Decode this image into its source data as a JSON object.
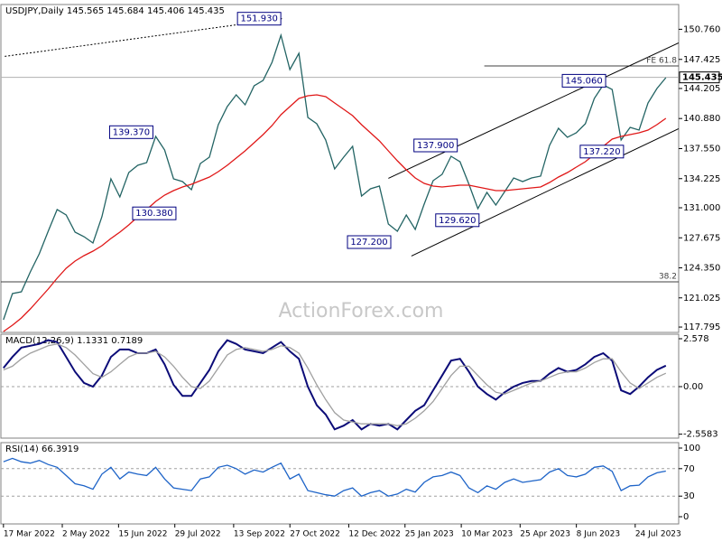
{
  "chart_data": [
    {
      "type": "line",
      "title": "USDJPY,Daily  145.565 145.684 145.406 145.435",
      "watermark": "ActionForex.com",
      "xlim": [
        "15 Mar 2022",
        "27 Aug 2023"
      ],
      "x": [
        "17 Mar 2022",
        "24 Mar 2022",
        "31 Mar 2022",
        "7 Apr 2022",
        "14 Apr 2022",
        "21 Apr 2022",
        "28 Apr 2022",
        "5 May 2022",
        "12 May 2022",
        "19 May 2022",
        "26 May 2022",
        "2 Jun 2022",
        "9 Jun 2022",
        "16 Jun 2022",
        "23 Jun 2022",
        "30 Jun 2022",
        "7 Jul 2022",
        "14 Jul 2022",
        "21 Jul 2022",
        "28 Jul 2022",
        "4 Aug 2022",
        "11 Aug 2022",
        "18 Aug 2022",
        "25 Aug 2022",
        "1 Sep 2022",
        "8 Sep 2022",
        "15 Sep 2022",
        "22 Sep 2022",
        "29 Sep 2022",
        "6 Oct 2022",
        "13 Oct 2022",
        "20 Oct 2022",
        "27 Oct 2022",
        "3 Nov 2022",
        "10 Nov 2022",
        "17 Nov 2022",
        "24 Nov 2022",
        "1 Dec 2022",
        "8 Dec 2022",
        "15 Dec 2022",
        "22 Dec 2022",
        "29 Dec 2022",
        "5 Jan 2023",
        "12 Jan 2023",
        "19 Jan 2023",
        "26 Jan 2023",
        "2 Feb 2023",
        "9 Feb 2023",
        "16 Feb 2023",
        "23 Feb 2023",
        "2 Mar 2023",
        "9 Mar 2023",
        "16 Mar 2023",
        "23 Mar 2023",
        "30 Mar 2023",
        "6 Apr 2023",
        "13 Apr 2023",
        "20 Apr 2023",
        "27 Apr 2023",
        "4 May 2023",
        "11 May 2023",
        "18 May 2023",
        "25 May 2023",
        "1 Jun 2023",
        "8 Jun 2023",
        "15 Jun 2023",
        "22 Jun 2023",
        "29 Jun 2023",
        "6 Jul 2023",
        "13 Jul 2023",
        "20 Jul 2023",
        "27 Jul 2023",
        "3 Aug 2023",
        "10 Aug 2023",
        "17 Aug 2023"
      ],
      "series": [
        {
          "color": "#236464",
          "values": [
            118.6,
            121.5,
            121.7,
            123.9,
            125.9,
            128.4,
            130.8,
            130.2,
            128.3,
            127.8,
            127.1,
            130.0,
            134.2,
            132.2,
            134.9,
            135.7,
            136.0,
            138.9,
            137.4,
            134.2,
            133.9,
            133.0,
            135.9,
            136.6,
            140.2,
            142.2,
            143.5,
            142.4,
            144.5,
            145.1,
            147.1,
            150.1,
            146.3,
            148.1,
            141.0,
            140.3,
            138.5,
            135.3,
            136.6,
            137.8,
            132.3,
            133.1,
            133.4,
            129.2,
            128.4,
            130.2,
            128.6,
            131.4,
            134.0,
            134.7,
            136.7,
            136.1,
            133.6,
            130.9,
            132.7,
            131.3,
            132.8,
            134.3,
            133.9,
            134.3,
            134.5,
            137.9,
            139.8,
            138.8,
            139.3,
            140.3,
            143.1,
            144.6,
            144.1,
            138.5,
            139.9,
            139.6,
            142.6,
            144.2,
            145.4
          ]
        },
        {
          "color": "#e01818",
          "values": [
            117.3,
            118.0,
            118.8,
            119.8,
            120.9,
            122.0,
            123.2,
            124.3,
            125.1,
            125.7,
            126.2,
            126.8,
            127.6,
            128.3,
            129.1,
            130.0,
            130.8,
            131.7,
            132.4,
            132.9,
            133.3,
            133.6,
            134.0,
            134.4,
            135.0,
            135.7,
            136.5,
            137.3,
            138.2,
            139.1,
            140.1,
            141.3,
            142.2,
            143.1,
            143.4,
            143.5,
            143.3,
            142.6,
            141.9,
            141.2,
            140.2,
            139.3,
            138.4,
            137.3,
            136.2,
            135.2,
            134.3,
            133.7,
            133.4,
            133.3,
            133.4,
            133.5,
            133.5,
            133.3,
            133.1,
            132.9,
            132.9,
            133.0,
            133.1,
            133.2,
            133.3,
            133.8,
            134.4,
            134.9,
            135.5,
            136.1,
            136.9,
            137.8,
            138.6,
            138.9,
            139.1,
            139.3,
            139.6,
            140.2,
            140.9
          ]
        }
      ],
      "ylim": [
        117.2,
        153.5
      ],
      "yticks": [
        117.795,
        121.025,
        {
          "value": 124.35,
          "label": "124.350"
        },
        127.675,
        {
          "value": 131,
          "label": "131.000"
        },
        134.225,
        {
          "value": 137.55,
          "label": "137.550"
        },
        {
          "value": 140.88,
          "label": "140.880"
        },
        144.205,
        147.425,
        {
          "value": 150.76,
          "label": "150.760"
        }
      ],
      "current_price": {
        "value": 145.435,
        "label": "145.435"
      },
      "hlines": [
        {
          "value": 146.7,
          "label": "FE 61.8",
          "x": "28 Mar 2023"
        },
        {
          "value": 122.8,
          "label": "38.2"
        }
      ],
      "annotations": [
        {
          "value": 151.93,
          "label": "151.930",
          "x": "16 Sep 2022"
        },
        {
          "value": 139.37,
          "label": "139.370",
          "x": "8 Jun 2022"
        },
        {
          "value": 130.38,
          "label": "130.380",
          "x": "26 Jun 2022"
        },
        {
          "value": 127.2,
          "label": "127.200",
          "x": "11 Dec 2022"
        },
        {
          "value": 137.9,
          "label": "137.900",
          "x": "1 Feb 2023"
        },
        {
          "value": 129.62,
          "label": "129.620",
          "x": "18 Feb 2023"
        },
        {
          "value": 145.06,
          "label": "145.060",
          "x": "28 May 2023"
        },
        {
          "value": 137.22,
          "label": "137.220",
          "x": "11 Jun 2023"
        }
      ],
      "trendlines": [
        {
          "x": [
            "18 Mar 2022",
            "22 Oct 2022"
          ],
          "y": [
            147.76,
            151.96
          ],
          "style": "dotted"
        },
        {
          "x": [
            "12 Jan 2023",
            "27 Aug 2023"
          ],
          "y": [
            134.26,
            149.26
          ],
          "style": "solid"
        },
        {
          "x": [
            "30 Jan 2023",
            "27 Aug 2023"
          ],
          "y": [
            125.66,
            139.76
          ],
          "style": "solid"
        }
      ]
    },
    {
      "type": "line",
      "title": "MACD(12,26,9) 1.1331 0.7189",
      "series": [
        {
          "color": "#0c0c78",
          "values": [
            1.0,
            1.6,
            2.1,
            2.2,
            2.3,
            2.5,
            2.4,
            1.6,
            0.8,
            0.2,
            0.0,
            0.6,
            1.6,
            2.0,
            2.0,
            1.8,
            1.8,
            2.0,
            1.2,
            0.1,
            -0.5,
            -0.5,
            0.2,
            0.9,
            1.9,
            2.5,
            2.3,
            2.0,
            1.9,
            1.8,
            2.1,
            2.4,
            1.9,
            1.5,
            0.0,
            -1.0,
            -1.5,
            -2.3,
            -2.1,
            -1.8,
            -2.3,
            -2.0,
            -2.1,
            -2.0,
            -2.3,
            -1.8,
            -1.3,
            -1.0,
            -0.2,
            0.6,
            1.4,
            1.5,
            0.8,
            0.0,
            -0.4,
            -0.7,
            -0.3,
            0.0,
            0.2,
            0.3,
            0.3,
            0.7,
            1.0,
            0.8,
            0.9,
            1.2,
            1.6,
            1.8,
            1.4,
            -0.2,
            -0.4,
            0.0,
            0.5,
            0.9,
            1.13
          ]
        },
        {
          "color": "#a0a0a0",
          "values": [
            0.9,
            1.1,
            1.5,
            1.8,
            2.0,
            2.2,
            2.3,
            2.1,
            1.7,
            1.2,
            0.7,
            0.5,
            0.8,
            1.2,
            1.6,
            1.8,
            1.8,
            1.9,
            1.6,
            1.1,
            0.5,
            0.0,
            -0.1,
            0.3,
            1.0,
            1.7,
            2.0,
            2.1,
            2.0,
            1.9,
            2.0,
            2.2,
            2.1,
            1.8,
            1.0,
            0.1,
            -0.7,
            -1.4,
            -1.8,
            -1.9,
            -2.0,
            -2.0,
            -2.0,
            -2.0,
            -2.1,
            -2.0,
            -1.7,
            -1.3,
            -0.8,
            -0.1,
            0.6,
            1.1,
            1.1,
            0.6,
            0.1,
            -0.3,
            -0.4,
            -0.2,
            0.0,
            0.2,
            0.3,
            0.5,
            0.7,
            0.8,
            0.8,
            1.0,
            1.3,
            1.5,
            1.5,
            0.8,
            0.2,
            -0.1,
            0.2,
            0.5,
            0.72
          ]
        }
      ],
      "ylim": [
        -2.77,
        2.82
      ],
      "yticks": [
        -2.5583,
        {
          "value": 0,
          "label": "0.00"
        },
        2.578
      ],
      "levels": [
        0
      ]
    },
    {
      "type": "line",
      "title": "RSI(14) 66.3919",
      "series": [
        {
          "color": "#1e64c8",
          "values": [
            80,
            85,
            80,
            78,
            82,
            76,
            72,
            60,
            48,
            45,
            40,
            62,
            72,
            55,
            65,
            62,
            60,
            72,
            55,
            42,
            40,
            38,
            55,
            58,
            72,
            75,
            70,
            62,
            68,
            65,
            72,
            78,
            55,
            62,
            38,
            35,
            32,
            30,
            38,
            42,
            30,
            35,
            38,
            30,
            33,
            40,
            36,
            50,
            58,
            60,
            65,
            60,
            42,
            35,
            45,
            40,
            50,
            55,
            50,
            52,
            54,
            65,
            70,
            60,
            58,
            62,
            72,
            74,
            66,
            38,
            45,
            46,
            58,
            64,
            66.4
          ]
        }
      ],
      "ylim": [
        -10.5,
        107.9
      ],
      "yticks": [
        0,
        30,
        70,
        100
      ],
      "levels": [
        70,
        30
      ],
      "xticks": [
        "17 Mar 2022",
        "2 May 2022",
        "15 Jun 2022",
        "29 Jul 2022",
        "13 Sep 2022",
        "27 Oct 2022",
        "12 Dec 2022",
        "25 Jan 2023",
        "10 Mar 2023",
        "25 Apr 2023",
        "8 Jun 2023",
        "24 Jul 2023"
      ]
    }
  ]
}
